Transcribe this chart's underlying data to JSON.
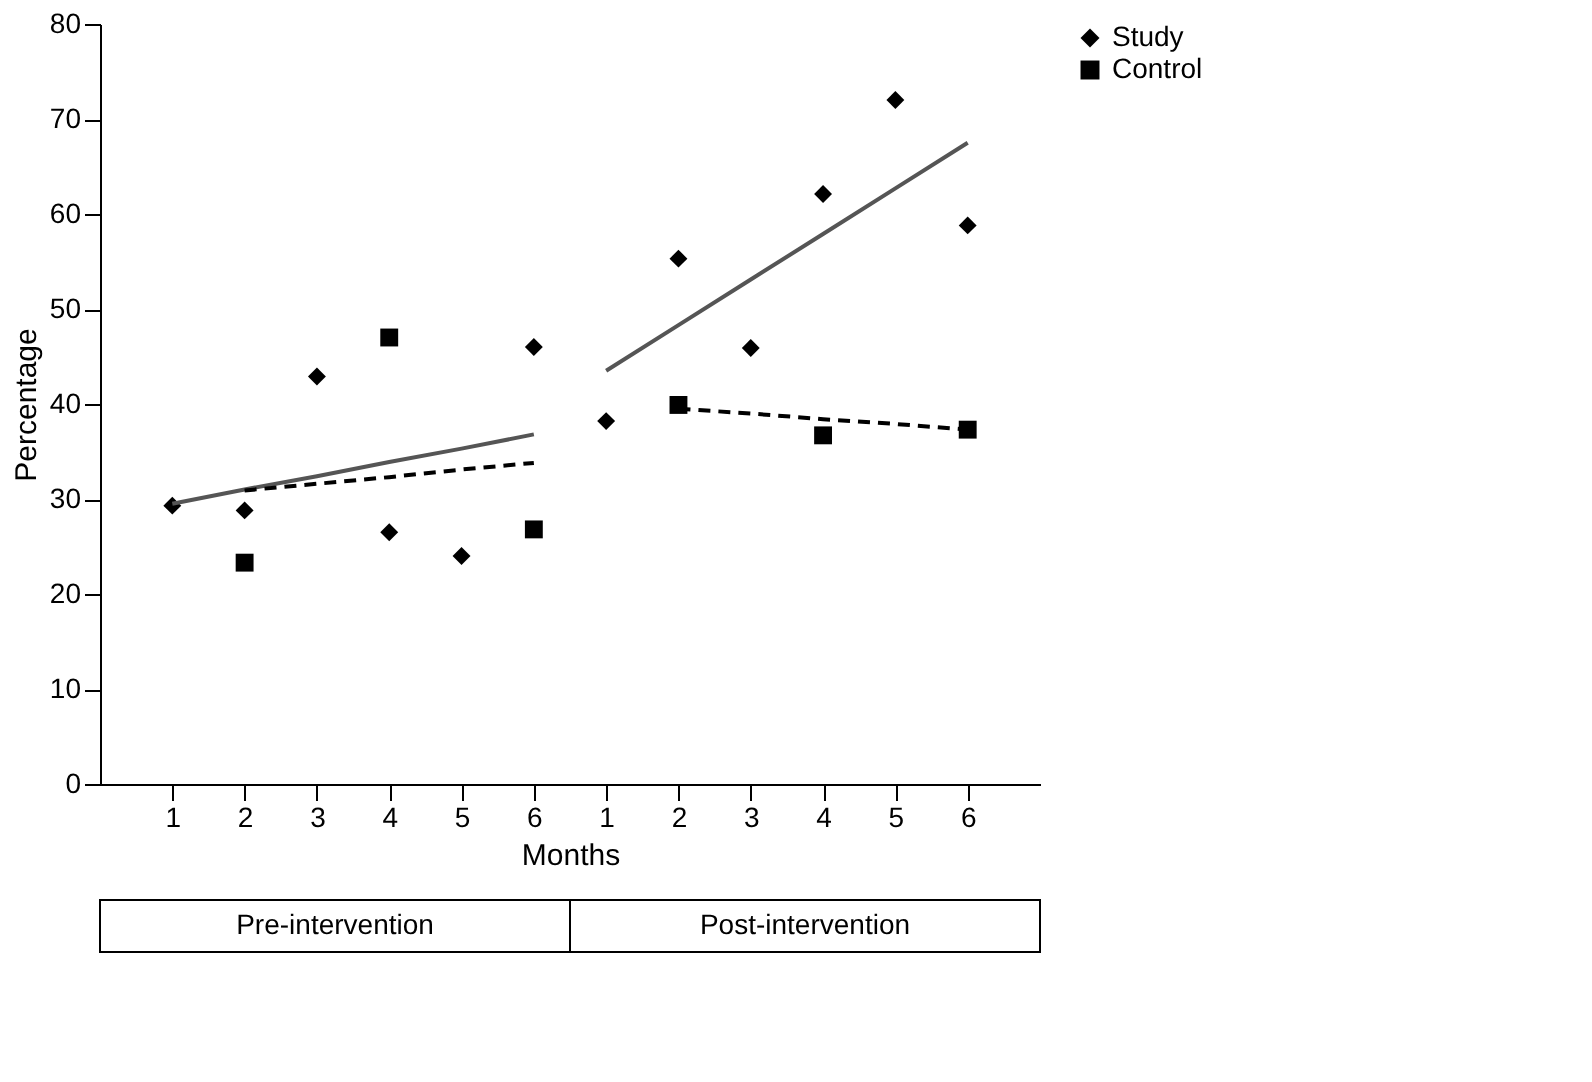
{
  "chart_data": {
    "type": "scatter",
    "xlabel": "Months",
    "ylabel": "Percentage",
    "categories": [
      "1",
      "2",
      "3",
      "4",
      "5",
      "6",
      "1",
      "2",
      "3",
      "4",
      "5",
      "6"
    ],
    "ylim": [
      0,
      80
    ],
    "yticks": [
      0,
      10,
      20,
      30,
      40,
      50,
      60,
      70,
      80
    ],
    "series": [
      {
        "name": "Study",
        "marker": "diamond",
        "color": "#000000",
        "values": [
          29.3,
          28.8,
          42.9,
          26.5,
          24,
          46,
          38.2,
          55.3,
          45.9,
          62.1,
          72,
          58.8
        ]
      },
      {
        "name": "Control",
        "marker": "square",
        "color": "#000000",
        "values": [
          null,
          23.3,
          null,
          47,
          null,
          26.8,
          null,
          39.9,
          null,
          36.7,
          null,
          37.3
        ]
      },
      {
        "type": "line",
        "line_style": "solid",
        "color": "#555555",
        "values": [
          29.5,
          31.0,
          32.4,
          33.9,
          35.3,
          36.8,
          null,
          null,
          null,
          null,
          null,
          null
        ]
      },
      {
        "type": "line",
        "line_style": "solid",
        "color": "#555555",
        "values": [
          null,
          null,
          null,
          null,
          null,
          null,
          43.5,
          48.3,
          53.1,
          57.9,
          62.7,
          67.5
        ]
      },
      {
        "type": "line",
        "line_style": "dashed",
        "color": "#000000",
        "values": [
          null,
          30.9,
          31.6,
          32.3,
          33.1,
          33.8,
          null,
          null,
          null,
          null,
          null,
          null
        ]
      },
      {
        "type": "line",
        "line_style": "dashed",
        "color": "#000000",
        "values": [
          null,
          null,
          null,
          null,
          null,
          null,
          null,
          39.5,
          39.0,
          38.4,
          37.9,
          37.3
        ]
      }
    ],
    "legend": "right",
    "grid": false,
    "annotations": [
      "Pre-intervention",
      "Post-intervention"
    ]
  }
}
